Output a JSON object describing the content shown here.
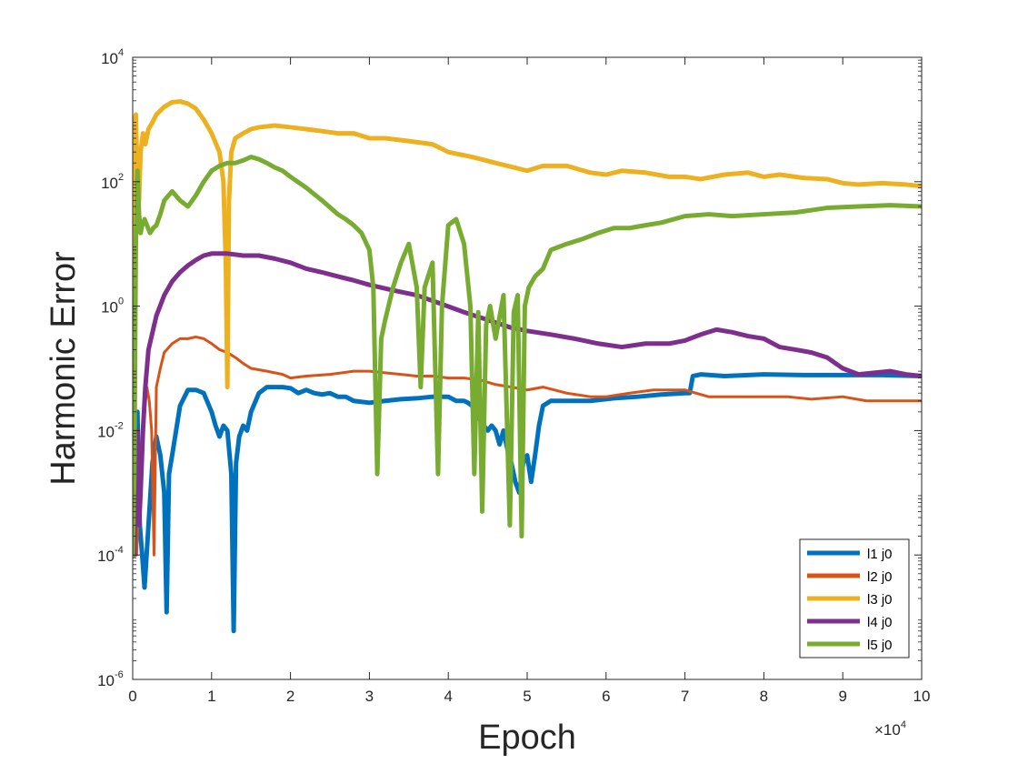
{
  "chart_data": {
    "type": "line",
    "xlabel": "Epoch",
    "ylabel": "Harmonic Error",
    "x_multiplier": "×10",
    "x_multiplier_exponent": "4",
    "xlim": [
      0,
      100000
    ],
    "ylim": [
      1e-06,
      10000.0
    ],
    "yscale": "log",
    "grid": false,
    "legend_position": "bottom-right",
    "x_ticks": [
      {
        "value": 0,
        "label": "0"
      },
      {
        "value": 10000,
        "label": "1"
      },
      {
        "value": 20000,
        "label": "2"
      },
      {
        "value": 30000,
        "label": "3"
      },
      {
        "value": 40000,
        "label": "4"
      },
      {
        "value": 50000,
        "label": "5"
      },
      {
        "value": 60000,
        "label": "6"
      },
      {
        "value": 70000,
        "label": "7"
      },
      {
        "value": 80000,
        "label": "8"
      },
      {
        "value": 90000,
        "label": "9"
      },
      {
        "value": 100000,
        "label": "10"
      }
    ],
    "y_ticks": [
      {
        "value": 1e-06,
        "base": "10",
        "exp": "-6"
      },
      {
        "value": 0.0001,
        "base": "10",
        "exp": "-4"
      },
      {
        "value": 0.01,
        "base": "10",
        "exp": "-2"
      },
      {
        "value": 1,
        "base": "10",
        "exp": "0"
      },
      {
        "value": 100,
        "base": "10",
        "exp": "2"
      },
      {
        "value": 10000,
        "base": "10",
        "exp": "4"
      }
    ],
    "series": [
      {
        "name": "l1 j0",
        "color": "#0072BD",
        "x": [
          0,
          300,
          600,
          900,
          1200,
          1500,
          2000,
          2500,
          3000,
          3500,
          4000,
          4300,
          4600,
          5000,
          5500,
          6000,
          7000,
          8000,
          9000,
          10000,
          10500,
          11000,
          11500,
          12000,
          12500,
          12800,
          13100,
          13500,
          14000,
          14500,
          15000,
          16000,
          17000,
          18000,
          19000,
          20000,
          21000,
          22000,
          23000,
          24000,
          25000,
          26000,
          27000,
          28000,
          30000,
          32000,
          34000,
          36000,
          38000,
          40000,
          41000,
          42000,
          42500,
          43000,
          43500,
          44000,
          44500,
          45000,
          45500,
          46000,
          46500,
          47000,
          47500,
          48000,
          48500,
          49000,
          49500,
          50000,
          50500,
          51000,
          51500,
          52000,
          53000,
          55000,
          58000,
          61000,
          64000,
          67000,
          70000,
          70600,
          71000,
          72000,
          75000,
          80000,
          85000,
          90000,
          95000,
          100000
        ],
        "values": [
          0.003,
          0.008,
          0.02,
          0.0003,
          0.0001,
          3e-05,
          0.0003,
          0.003,
          0.008,
          0.004,
          0.001,
          1.2e-05,
          0.002,
          0.004,
          0.01,
          0.025,
          0.045,
          0.045,
          0.04,
          0.02,
          0.012,
          0.008,
          0.012,
          0.01,
          0.002,
          6e-06,
          0.003,
          0.008,
          0.012,
          0.01,
          0.02,
          0.04,
          0.05,
          0.05,
          0.05,
          0.048,
          0.04,
          0.045,
          0.04,
          0.038,
          0.04,
          0.035,
          0.035,
          0.03,
          0.028,
          0.03,
          0.032,
          0.033,
          0.035,
          0.035,
          0.03,
          0.03,
          0.028,
          0.025,
          0.02,
          0.015,
          0.012,
          0.01,
          0.012,
          0.01,
          0.006,
          0.01,
          0.005,
          0.003,
          0.0015,
          0.001,
          0.003,
          0.004,
          0.0015,
          0.004,
          0.012,
          0.025,
          0.03,
          0.03,
          0.03,
          0.033,
          0.035,
          0.038,
          0.04,
          0.04,
          0.075,
          0.08,
          0.075,
          0.08,
          0.078,
          0.078,
          0.078,
          0.075
        ]
      },
      {
        "name": "l2 j0",
        "color": "#D95319",
        "x": [
          0,
          500,
          1000,
          1500,
          1800,
          2100,
          2400,
          2700,
          3000,
          3500,
          4000,
          5000,
          6000,
          7000,
          8000,
          9000,
          10000,
          11000,
          12000,
          13000,
          14000,
          15000,
          17000,
          19000,
          20000,
          22000,
          25000,
          28000,
          30000,
          32000,
          34000,
          36000,
          38000,
          40000,
          42000,
          44000,
          46000,
          48000,
          50000,
          52000,
          55000,
          58000,
          60000,
          63000,
          66000,
          70000,
          73000,
          76000,
          80000,
          83000,
          86000,
          90000,
          93000,
          96000,
          100000
        ],
        "values": [
          0.01,
          0.0001,
          0.003,
          0.02,
          0.05,
          0.03,
          0.01,
          0.0001,
          0.05,
          0.1,
          0.18,
          0.25,
          0.3,
          0.3,
          0.32,
          0.3,
          0.25,
          0.2,
          0.18,
          0.15,
          0.12,
          0.1,
          0.09,
          0.08,
          0.07,
          0.075,
          0.08,
          0.09,
          0.09,
          0.085,
          0.08,
          0.075,
          0.075,
          0.07,
          0.07,
          0.065,
          0.055,
          0.05,
          0.045,
          0.05,
          0.04,
          0.035,
          0.035,
          0.04,
          0.045,
          0.045,
          0.035,
          0.035,
          0.035,
          0.035,
          0.032,
          0.035,
          0.03,
          0.03,
          0.03
        ]
      },
      {
        "name": "l3 j0",
        "color": "#EDB120",
        "x": [
          0,
          200,
          400,
          600,
          800,
          1000,
          1300,
          1600,
          2000,
          2500,
          3000,
          4000,
          5000,
          6000,
          7000,
          8000,
          9000,
          10000,
          11000,
          11500,
          11800,
          12000,
          12200,
          12500,
          13000,
          14000,
          15000,
          16000,
          18000,
          20000,
          22000,
          24000,
          26000,
          28000,
          30000,
          32000,
          35000,
          38000,
          40000,
          43000,
          46000,
          50000,
          52000,
          55000,
          58000,
          60000,
          62000,
          65000,
          68000,
          70000,
          72000,
          75000,
          78000,
          80000,
          82000,
          85000,
          88000,
          90000,
          92000,
          95000,
          98000,
          100000
        ],
        "values": [
          0.01,
          900,
          1200,
          100,
          50,
          300,
          600,
          400,
          700,
          900,
          1200,
          1600,
          1900,
          1950,
          1800,
          1500,
          1000,
          600,
          300,
          100,
          5,
          0.05,
          50,
          300,
          500,
          600,
          700,
          750,
          800,
          750,
          700,
          650,
          600,
          600,
          500,
          500,
          450,
          400,
          300,
          250,
          200,
          150,
          180,
          180,
          140,
          130,
          150,
          140,
          120,
          120,
          110,
          130,
          140,
          120,
          130,
          115,
          110,
          95,
          90,
          95,
          90,
          85
        ]
      },
      {
        "name": "l4 j0",
        "color": "#7E2F8E",
        "x": [
          0,
          200,
          400,
          600,
          800,
          1000,
          1300,
          1600,
          2000,
          3000,
          4000,
          5000,
          6000,
          7000,
          8000,
          9000,
          10000,
          12000,
          14000,
          16000,
          18000,
          20000,
          22000,
          24000,
          26000,
          28000,
          30000,
          33000,
          36000,
          39000,
          42000,
          45000,
          48000,
          50000,
          53000,
          56000,
          59000,
          62000,
          65000,
          68000,
          70000,
          72000,
          74000,
          76000,
          78000,
          80000,
          82000,
          84000,
          86000,
          88000,
          90000,
          92000,
          94000,
          96000,
          98000,
          100000
        ],
        "values": [
          0.001,
          0.0001,
          0.005,
          0.01,
          0.0003,
          0.001,
          0.01,
          0.05,
          0.2,
          0.7,
          1.5,
          2.5,
          3.5,
          4.5,
          5.5,
          6.5,
          7,
          7,
          6.5,
          6.5,
          5.8,
          5,
          4,
          3.5,
          3,
          2.6,
          2.2,
          1.8,
          1.5,
          1.1,
          0.8,
          0.6,
          0.45,
          0.4,
          0.35,
          0.3,
          0.25,
          0.22,
          0.25,
          0.25,
          0.28,
          0.35,
          0.42,
          0.38,
          0.33,
          0.3,
          0.22,
          0.2,
          0.18,
          0.15,
          0.1,
          0.08,
          0.085,
          0.09,
          0.08,
          0.075
        ]
      },
      {
        "name": "l5 j0",
        "color": "#77AC30",
        "x": [
          0,
          200,
          400,
          600,
          800,
          1000,
          1200,
          1500,
          1800,
          2200,
          2600,
          3000,
          3500,
          4000,
          5000,
          6000,
          7000,
          8000,
          9000,
          10000,
          11000,
          12000,
          13000,
          14000,
          15000,
          16000,
          17000,
          18000,
          19000,
          20000,
          22000,
          24000,
          26000,
          27000,
          28000,
          29000,
          30000,
          30500,
          31000,
          31500,
          32000,
          33000,
          34000,
          35000,
          36000,
          36500,
          37000,
          38000,
          38700,
          39200,
          40000,
          41000,
          42000,
          42800,
          43300,
          43800,
          44300,
          44800,
          45300,
          46000,
          47000,
          47800,
          48300,
          48800,
          49300,
          49700,
          50200,
          51000,
          52000,
          53000,
          55000,
          57000,
          59000,
          61000,
          63000,
          65000,
          67000,
          70000,
          73000,
          76000,
          80000,
          84000,
          88000,
          92000,
          96000,
          100000
        ],
        "values": [
          0.0001,
          0.002,
          10,
          150,
          30,
          15,
          20,
          25,
          20,
          15,
          18,
          20,
          30,
          50,
          70,
          50,
          40,
          60,
          100,
          150,
          180,
          200,
          200,
          220,
          250,
          230,
          200,
          170,
          150,
          120,
          80,
          50,
          30,
          25,
          20,
          15,
          8,
          2,
          0.002,
          0.3,
          0.6,
          2,
          5,
          10,
          2,
          0.05,
          2,
          5,
          0.002,
          1,
          20,
          25,
          10,
          1,
          0.002,
          0.8,
          0.0005,
          0.5,
          1,
          0.3,
          1.5,
          0.0003,
          0.8,
          1.5,
          0.0002,
          1,
          2,
          3,
          4,
          8,
          10,
          12,
          15,
          18,
          18,
          20,
          22,
          28,
          30,
          28,
          30,
          32,
          38,
          40,
          42,
          40
        ]
      }
    ]
  }
}
